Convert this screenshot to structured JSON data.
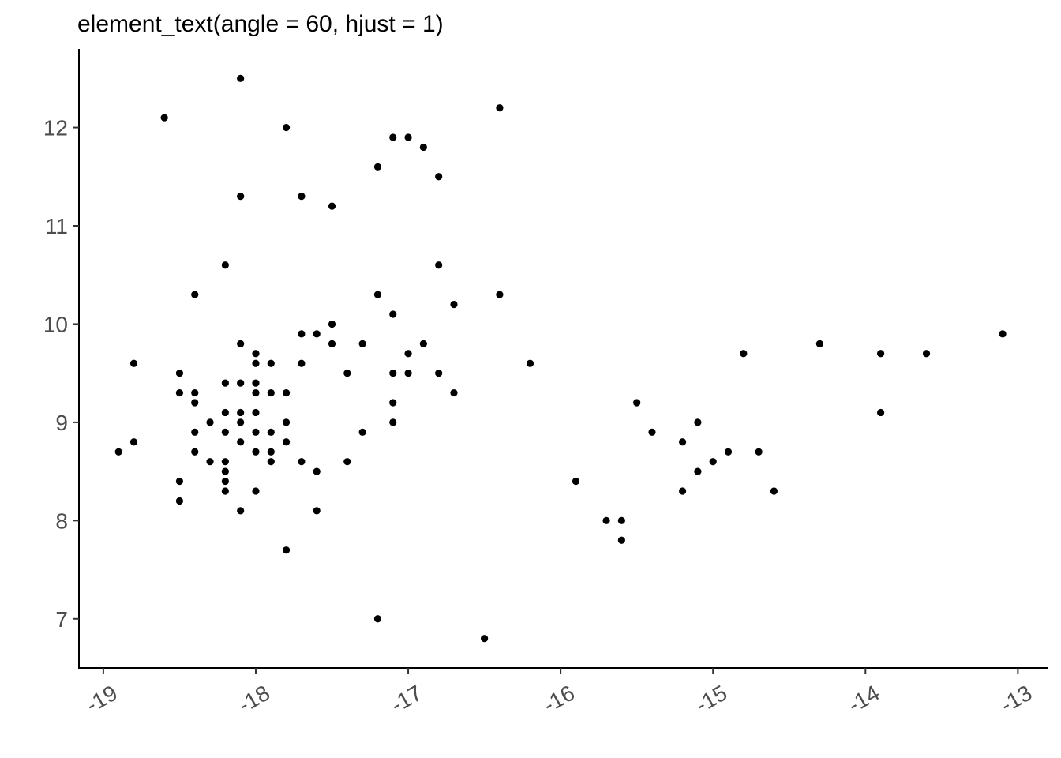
{
  "chart_data": {
    "type": "scatter",
    "title": "element_text(angle = 60, hjust = 1)",
    "xlabel": "",
    "ylabel": "",
    "xlim": [
      -19.16,
      -12.8
    ],
    "ylim": [
      6.5,
      12.8
    ],
    "x_ticks": [
      -19,
      -18,
      -17,
      -16,
      -15,
      -14,
      -13
    ],
    "x_tick_labels": [
      "-19",
      "-18",
      "-17",
      "-16",
      "-15",
      "-14",
      "-13"
    ],
    "y_ticks": [
      7,
      8,
      9,
      10,
      11,
      12
    ],
    "y_tick_labels": [
      "7",
      "8",
      "9",
      "10",
      "11",
      "12"
    ],
    "x_tick_angle": 30,
    "grid": false,
    "point_color": "#000000",
    "points": [
      [
        -18.1,
        12.5
      ],
      [
        -18.6,
        12.1
      ],
      [
        -17.8,
        12.0
      ],
      [
        -16.4,
        12.2
      ],
      [
        -17.1,
        11.9
      ],
      [
        -17.0,
        11.9
      ],
      [
        -16.9,
        11.8
      ],
      [
        -17.2,
        11.6
      ],
      [
        -16.8,
        11.5
      ],
      [
        -18.1,
        11.3
      ],
      [
        -17.7,
        11.3
      ],
      [
        -17.5,
        11.2
      ],
      [
        -18.2,
        10.6
      ],
      [
        -16.8,
        10.6
      ],
      [
        -18.4,
        10.3
      ],
      [
        -17.2,
        10.3
      ],
      [
        -16.4,
        10.3
      ],
      [
        -16.7,
        10.2
      ],
      [
        -17.1,
        10.1
      ],
      [
        -17.5,
        10.0
      ],
      [
        -17.7,
        9.9
      ],
      [
        -17.6,
        9.9
      ],
      [
        -13.1,
        9.9
      ],
      [
        -18.1,
        9.8
      ],
      [
        -17.5,
        9.8
      ],
      [
        -17.3,
        9.8
      ],
      [
        -16.9,
        9.8
      ],
      [
        -14.3,
        9.8
      ],
      [
        -18.0,
        9.7
      ],
      [
        -17.0,
        9.7
      ],
      [
        -14.8,
        9.7
      ],
      [
        -13.9,
        9.7
      ],
      [
        -13.6,
        9.7
      ],
      [
        -18.8,
        9.6
      ],
      [
        -18.0,
        9.6
      ],
      [
        -17.9,
        9.6
      ],
      [
        -17.7,
        9.6
      ],
      [
        -16.2,
        9.6
      ],
      [
        -18.5,
        9.5
      ],
      [
        -17.4,
        9.5
      ],
      [
        -17.1,
        9.5
      ],
      [
        -17.0,
        9.5
      ],
      [
        -16.8,
        9.5
      ],
      [
        -18.2,
        9.4
      ],
      [
        -18.1,
        9.4
      ],
      [
        -18.0,
        9.4
      ],
      [
        -18.5,
        9.3
      ],
      [
        -18.4,
        9.3
      ],
      [
        -18.0,
        9.3
      ],
      [
        -17.9,
        9.3
      ],
      [
        -17.8,
        9.3
      ],
      [
        -16.7,
        9.3
      ],
      [
        -18.4,
        9.2
      ],
      [
        -17.1,
        9.2
      ],
      [
        -15.5,
        9.2
      ],
      [
        -18.2,
        9.1
      ],
      [
        -18.1,
        9.1
      ],
      [
        -18.0,
        9.1
      ],
      [
        -13.9,
        9.1
      ],
      [
        -18.3,
        9.0
      ],
      [
        -18.1,
        9.0
      ],
      [
        -17.8,
        9.0
      ],
      [
        -17.1,
        9.0
      ],
      [
        -15.1,
        9.0
      ],
      [
        -18.4,
        8.9
      ],
      [
        -18.2,
        8.9
      ],
      [
        -18.0,
        8.9
      ],
      [
        -17.9,
        8.9
      ],
      [
        -17.3,
        8.9
      ],
      [
        -15.4,
        8.9
      ],
      [
        -18.8,
        8.8
      ],
      [
        -18.1,
        8.8
      ],
      [
        -17.8,
        8.8
      ],
      [
        -15.2,
        8.8
      ],
      [
        -18.9,
        8.7
      ],
      [
        -18.4,
        8.7
      ],
      [
        -18.0,
        8.7
      ],
      [
        -17.9,
        8.7
      ],
      [
        -14.9,
        8.7
      ],
      [
        -14.7,
        8.7
      ],
      [
        -18.3,
        8.6
      ],
      [
        -18.2,
        8.6
      ],
      [
        -17.9,
        8.6
      ],
      [
        -17.7,
        8.6
      ],
      [
        -17.4,
        8.6
      ],
      [
        -15.0,
        8.6
      ],
      [
        -18.2,
        8.5
      ],
      [
        -17.6,
        8.5
      ],
      [
        -15.1,
        8.5
      ],
      [
        -18.5,
        8.4
      ],
      [
        -18.2,
        8.4
      ],
      [
        -15.9,
        8.4
      ],
      [
        -18.2,
        8.3
      ],
      [
        -18.0,
        8.3
      ],
      [
        -15.2,
        8.3
      ],
      [
        -14.6,
        8.3
      ],
      [
        -18.5,
        8.2
      ],
      [
        -18.1,
        8.1
      ],
      [
        -17.6,
        8.1
      ],
      [
        -15.7,
        8.0
      ],
      [
        -15.6,
        8.0
      ],
      [
        -15.6,
        7.8
      ],
      [
        -17.8,
        7.7
      ],
      [
        -17.2,
        7.0
      ],
      [
        -16.5,
        6.8
      ]
    ]
  }
}
